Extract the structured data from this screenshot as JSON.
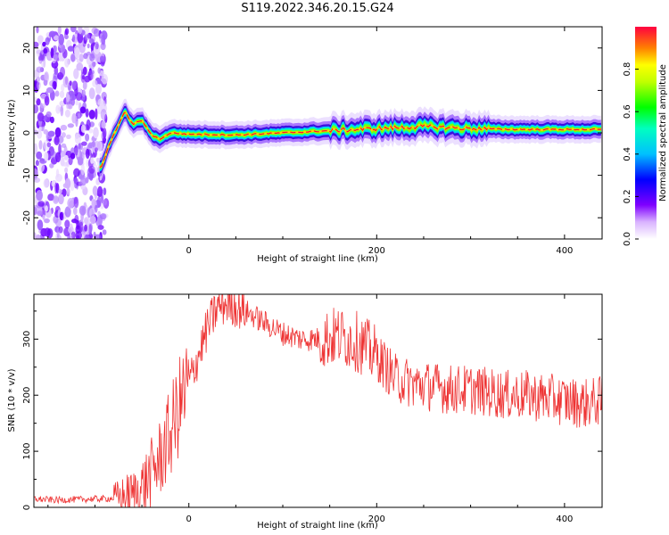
{
  "title": "S119.2022.346.20.15.G24",
  "chart_data": [
    {
      "type": "heatmap",
      "xlabel": "Height of straight line (km)",
      "ylabel": "Frequency (Hz)",
      "xlim": [
        -165,
        440
      ],
      "ylim": [
        -25,
        25
      ],
      "xticks": [
        0,
        200,
        400
      ],
      "yticks": [
        -20,
        -10,
        0,
        10,
        20
      ],
      "colorbar": {
        "label": "Normalized spectral amplitude",
        "range": [
          0,
          1
        ],
        "ticks": [
          "0.0",
          "0.2",
          "0.4",
          "0.6",
          "0.8"
        ]
      },
      "ridge": [
        {
          "x": -93,
          "y": -8
        },
        {
          "x": -85,
          "y": -3
        },
        {
          "x": -75,
          "y": 2
        },
        {
          "x": -68,
          "y": 5
        },
        {
          "x": -60,
          "y": 2
        },
        {
          "x": -50,
          "y": 3
        },
        {
          "x": -40,
          "y": -0.5
        },
        {
          "x": -30,
          "y": -1.5
        },
        {
          "x": -20,
          "y": 0
        },
        {
          "x": 0,
          "y": -0.3
        },
        {
          "x": 50,
          "y": -0.5
        },
        {
          "x": 100,
          "y": 0
        },
        {
          "x": 150,
          "y": 0.5
        },
        {
          "x": 200,
          "y": 1
        },
        {
          "x": 250,
          "y": 1.5
        },
        {
          "x": 300,
          "y": 1
        },
        {
          "x": 350,
          "y": 0.8
        },
        {
          "x": 400,
          "y": 0.8
        },
        {
          "x": 440,
          "y": 0.8
        }
      ]
    },
    {
      "type": "line",
      "xlabel": "Height of straight line (km)",
      "ylabel": "SNR (10 * v/v)",
      "xlim": [
        -165,
        440
      ],
      "ylim": [
        0,
        380
      ],
      "xticks": [
        0,
        200,
        400
      ],
      "yticks": [
        0,
        100,
        200,
        300
      ],
      "series": [
        {
          "color": "#ee3333",
          "x": [
            -165,
            -140,
            -120,
            -100,
            -80,
            -60,
            -50,
            -40,
            -30,
            -20,
            -10,
            0,
            10,
            20,
            30,
            40,
            50,
            60,
            80,
            100,
            120,
            140,
            160,
            180,
            200,
            210,
            220,
            240,
            260,
            280,
            300,
            320,
            340,
            360,
            380,
            400,
            420,
            440
          ],
          "y": [
            15,
            13,
            14,
            15,
            16,
            22,
            35,
            60,
            90,
            130,
            180,
            220,
            270,
            320,
            355,
            365,
            360,
            350,
            330,
            310,
            300,
            300,
            305,
            295,
            270,
            250,
            230,
            220,
            215,
            210,
            210,
            205,
            200,
            200,
            195,
            190,
            185,
            190
          ]
        }
      ]
    }
  ]
}
